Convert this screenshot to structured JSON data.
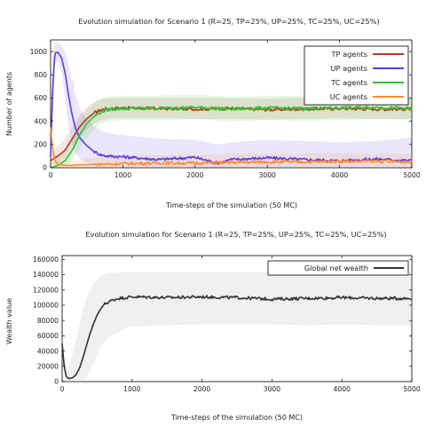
{
  "chart_data": [
    {
      "type": "line",
      "title": "Evolution simulation for Scenario 1 (R=25, TP=25%, UP=25%, TC=25%, UC=25%)",
      "xlabel": "Time-steps of the simulation (50 MC)",
      "ylabel": "Number of agents",
      "xlim": [
        0,
        5000
      ],
      "ylim": [
        0,
        1100
      ],
      "xticks": [
        "0",
        "1000",
        "2000",
        "3000",
        "4000",
        "5000"
      ],
      "yticks": [
        "0",
        "200",
        "400",
        "600",
        "800",
        "1000"
      ],
      "grid": false,
      "legend_position": "top-right",
      "shaded_band": true,
      "series": [
        {
          "name": "TP agents",
          "color": "#b23a26",
          "x": [
            0,
            100,
            200,
            300,
            400,
            500,
            600,
            700,
            800,
            1000,
            1500,
            2000,
            2500,
            3000,
            3500,
            4000,
            4500,
            5000
          ],
          "y": [
            60,
            100,
            150,
            250,
            350,
            420,
            470,
            500,
            510,
            515,
            510,
            505,
            510,
            500,
            505,
            510,
            505,
            505
          ],
          "band_low": [
            20,
            40,
            80,
            150,
            250,
            330,
            380,
            410,
            420,
            430,
            430,
            420,
            420,
            415,
            420,
            425,
            420,
            420
          ],
          "band_high": [
            120,
            180,
            250,
            350,
            450,
            520,
            560,
            590,
            600,
            600,
            600,
            600,
            600,
            595,
            600,
            600,
            600,
            600
          ]
        },
        {
          "name": "UP agents",
          "color": "#5a3fe0",
          "x": [
            0,
            30,
            60,
            100,
            150,
            200,
            250,
            300,
            350,
            400,
            500,
            600,
            700,
            800,
            1000,
            1500,
            2000,
            2300,
            2500,
            3000,
            3500,
            4000,
            4500,
            5000
          ],
          "y": [
            100,
            700,
            990,
            995,
            950,
            820,
            620,
            450,
            330,
            260,
            190,
            140,
            110,
            100,
            95,
            70,
            90,
            40,
            70,
            85,
            70,
            60,
            75,
            60
          ],
          "band_low": [
            0,
            400,
            900,
            920,
            820,
            600,
            380,
            220,
            120,
            80,
            40,
            20,
            10,
            10,
            10,
            5,
            10,
            0,
            5,
            10,
            5,
            5,
            5,
            5
          ],
          "band_high": [
            250,
            1000,
            1080,
            1080,
            1060,
            1000,
            900,
            760,
            620,
            520,
            420,
            360,
            320,
            300,
            280,
            250,
            240,
            200,
            220,
            240,
            230,
            220,
            230,
            260
          ]
        },
        {
          "name": "TC agents",
          "color": "#2ec32e",
          "x": [
            0,
            100,
            200,
            300,
            400,
            500,
            600,
            700,
            800,
            1000,
            1500,
            2000,
            2500,
            3000,
            3500,
            4000,
            4500,
            5000
          ],
          "y": [
            0,
            20,
            60,
            150,
            280,
            380,
            440,
            480,
            500,
            510,
            510,
            520,
            505,
            515,
            510,
            515,
            520,
            510
          ],
          "band_low": [
            0,
            0,
            10,
            60,
            160,
            260,
            330,
            380,
            400,
            410,
            410,
            420,
            400,
            410,
            405,
            410,
            420,
            410
          ],
          "band_high": [
            30,
            80,
            160,
            260,
            400,
            500,
            560,
            600,
            610,
            620,
            620,
            630,
            610,
            620,
            620,
            625,
            630,
            620
          ]
        },
        {
          "name": "UC agents",
          "color": "#ff8c2a",
          "x": [
            0,
            30,
            60,
            100,
            200,
            300,
            400,
            500,
            700,
            1000,
            1500,
            2000,
            2500,
            3000,
            3500,
            4000,
            4500,
            5000
          ],
          "y": [
            350,
            150,
            60,
            30,
            20,
            20,
            25,
            25,
            30,
            35,
            40,
            40,
            45,
            50,
            50,
            55,
            55,
            50
          ],
          "band_low": [
            250,
            80,
            20,
            0,
            0,
            0,
            0,
            0,
            0,
            0,
            0,
            0,
            5,
            10,
            10,
            10,
            15,
            10
          ],
          "band_high": [
            450,
            250,
            130,
            80,
            60,
            60,
            70,
            80,
            90,
            100,
            110,
            110,
            120,
            120,
            120,
            125,
            120,
            120
          ]
        }
      ]
    },
    {
      "type": "line",
      "title": "Evolution simulation for Scenario 1 (R=25, TP=25%, UP=25%, TC=25%, UC=25%)",
      "xlabel": "Time-steps of the simulation (50 MC)",
      "ylabel": "Wealth value",
      "xlim": [
        0,
        5000
      ],
      "ylim": [
        0,
        165000
      ],
      "xticks": [
        "0",
        "1000",
        "2000",
        "3000",
        "4000",
        "5000"
      ],
      "yticks": [
        "0",
        "20000",
        "40000",
        "60000",
        "80000",
        "100000",
        "120000",
        "140000",
        "160000"
      ],
      "grid": false,
      "legend_position": "top-right",
      "shaded_band": true,
      "series": [
        {
          "name": "Global net wealth",
          "color": "#333333",
          "x": [
            0,
            30,
            60,
            100,
            150,
            200,
            250,
            300,
            350,
            400,
            450,
            500,
            550,
            600,
            700,
            800,
            900,
            1000,
            1500,
            2000,
            2500,
            3000,
            3500,
            4000,
            4500,
            5000
          ],
          "y": [
            50000,
            20000,
            6000,
            4000,
            5000,
            9000,
            18000,
            32000,
            48000,
            63000,
            76000,
            87000,
            95000,
            101000,
            106000,
            109000,
            110000,
            111000,
            110000,
            111000,
            110000,
            108000,
            109000,
            110000,
            109000,
            109000
          ],
          "band_low": [
            40000,
            10000,
            0,
            0,
            0,
            0,
            0,
            0,
            5000,
            15000,
            25000,
            35000,
            45000,
            52000,
            60000,
            65000,
            70000,
            72000,
            74000,
            75000,
            75000,
            75000,
            74000,
            75000,
            74000,
            74000
          ],
          "band_high": [
            60000,
            30000,
            15000,
            20000,
            35000,
            55000,
            75000,
            95000,
            110000,
            120000,
            128000,
            134000,
            138000,
            140000,
            142000,
            143000,
            143000,
            143000,
            143000,
            143000,
            143000,
            143000,
            143000,
            143000,
            143000,
            143000
          ]
        }
      ]
    }
  ]
}
